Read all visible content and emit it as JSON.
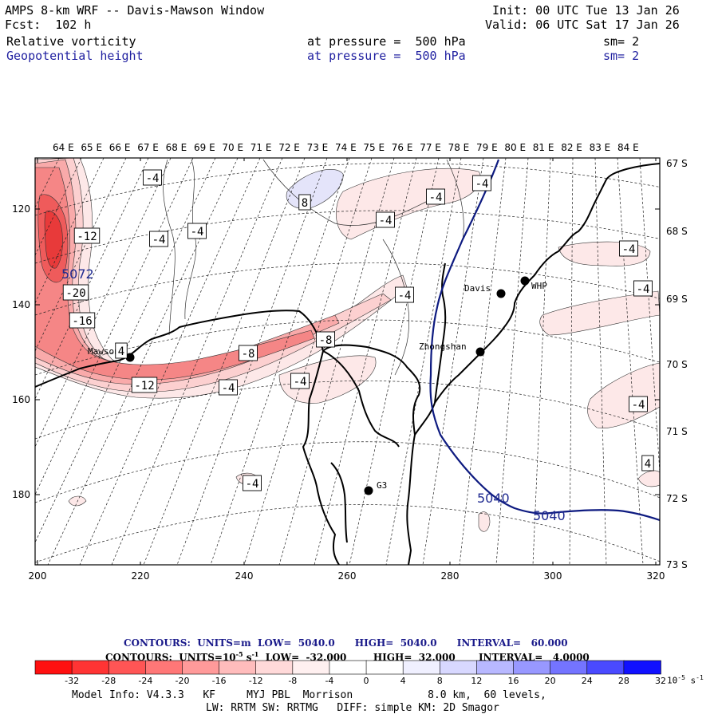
{
  "header": {
    "title": "AMPS 8-km WRF -- Davis-Mawson Window",
    "forecast": "Fcst:  102 h",
    "init": "Init: 00 UTC Tue 13 Jan 26",
    "valid": "Valid: 06 UTC Sat 17 Jan 26",
    "field1": {
      "name": "Relative vorticity",
      "level": "at pressure =  500 hPa",
      "smoothing": "sm= 2"
    },
    "field2": {
      "name": "Geopotential height",
      "level": "at pressure =  500 hPa",
      "smoothing": "sm= 2"
    }
  },
  "map": {
    "top_longitudes": [
      "64 E",
      "65 E",
      "66 E",
      "67 E",
      "68 E",
      "69 E",
      "70 E",
      "71 E",
      "72 E",
      "73 E",
      "74 E",
      "75 E",
      "76 E",
      "77 E",
      "78 E",
      "79 E",
      "80 E",
      "81 E",
      "82 E",
      "83 E",
      "84 E"
    ],
    "right_latitudes": [
      "67 S",
      "68 S",
      "69 S",
      "70 S",
      "71 S",
      "72 S",
      "73 S"
    ],
    "x_ticks": [
      "200",
      "220",
      "240",
      "260",
      "280",
      "300",
      "320"
    ],
    "y_ticks": [
      "120",
      "140",
      "160",
      "180"
    ],
    "stations": [
      {
        "name": "Mawson"
      },
      {
        "name": "Davis"
      },
      {
        "name": "WHP"
      },
      {
        "name": "Zhongshan"
      },
      {
        "name": "G3"
      }
    ],
    "vorticity_labels": [
      "-4",
      "-4",
      "-4",
      "-4",
      "-4",
      "-4",
      "-4",
      "-4",
      "-4",
      "-4",
      "-4",
      "-4",
      "-4",
      "-12",
      "-12",
      "-20",
      "-16",
      "-8",
      "-8",
      "8",
      "4",
      "4"
    ],
    "height_labels": [
      "5072",
      "5040",
      "5040"
    ]
  },
  "colors": {
    "negative_strong": "#ff1a1a",
    "negative_weak": "#fde4e4",
    "positive_weak": "#e4e4fa",
    "height_contour": "#0d1a80"
  },
  "legend": {
    "height_contours": "CONTOURS:  UNITS=m  LOW=  5040.0      HIGH=  5040.0      INTERVAL=   60.000",
    "vort_contours_a": "CONTOURS:  UNITS=10",
    "vort_contours_exp": "-5",
    "vort_contours_b": " s",
    "vort_contours_exp2": "-1",
    "vort_contours_c": "  LOW=  -32.000        HIGH=  32.000       INTERVAL=   4.0000",
    "colorbar_labels": [
      "-32",
      "-28",
      "-24",
      "-20",
      "-16",
      "-12",
      "-8",
      "-4",
      "0",
      "4",
      "8",
      "12",
      "16",
      "20",
      "24",
      "28",
      "32"
    ],
    "colorbar_unit": "10",
    "colorbar_unit_exp": "-5",
    "colorbar_unit_s": " s",
    "colorbar_unit_exp2": "-1",
    "colorbar_colors": [
      "#ff1010",
      "#ff3434",
      "#ff5555",
      "#ff7777",
      "#ff9a9a",
      "#ffbcbc",
      "#ffd9d9",
      "#fff0f0",
      "#ffffff",
      "#ffffff",
      "#f0f0ff",
      "#d8d8ff",
      "#b8b8ff",
      "#9898ff",
      "#7474ff",
      "#4a4aff",
      "#1010ff"
    ]
  },
  "footer": {
    "line1": "Model Info: V4.3.3   KF     MYJ PBL  Morrison            8.0 km,  60 levels,",
    "line2": "LW: RRTM SW: RRTMG   DIFF: simple KM: 2D Smagor"
  }
}
